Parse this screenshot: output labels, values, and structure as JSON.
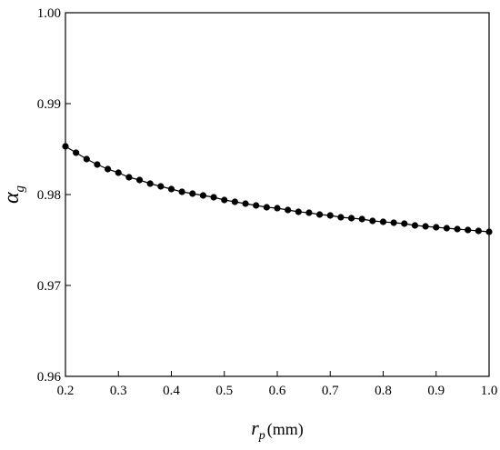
{
  "chart_data": {
    "type": "line",
    "title": "",
    "xlabel": {
      "symbol": "r",
      "subscript": "p",
      "unit": "(mm)"
    },
    "ylabel": {
      "symbol": "α",
      "subscript": "g"
    },
    "xlim": [
      0.2,
      1.0
    ],
    "ylim": [
      0.96,
      1.0
    ],
    "xticks": [
      "0.2",
      "0.3",
      "0.4",
      "0.5",
      "0.6",
      "0.7",
      "0.8",
      "0.9",
      "1.0"
    ],
    "yticks": [
      "0.96",
      "0.97",
      "0.98",
      "0.99",
      "1.00"
    ],
    "grid": false,
    "marker": "filled-circle",
    "series": [
      {
        "x": [
          0.2,
          0.22,
          0.24,
          0.26,
          0.28,
          0.3,
          0.32,
          0.34,
          0.36,
          0.38,
          0.4,
          0.42,
          0.44,
          0.46,
          0.48,
          0.5,
          0.52,
          0.54,
          0.56,
          0.58,
          0.6,
          0.62,
          0.64,
          0.66,
          0.68,
          0.7,
          0.72,
          0.74,
          0.76,
          0.78,
          0.8,
          0.82,
          0.84,
          0.86,
          0.88,
          0.9,
          0.92,
          0.94,
          0.96,
          0.98,
          1.0
        ],
        "y": [
          0.9853,
          0.9846,
          0.9839,
          0.9833,
          0.9828,
          0.9824,
          0.9819,
          0.9816,
          0.9812,
          0.9809,
          0.9806,
          0.9803,
          0.9801,
          0.9799,
          0.9797,
          0.9794,
          0.9792,
          0.979,
          0.9788,
          0.9786,
          0.9785,
          0.9783,
          0.9781,
          0.978,
          0.9778,
          0.9777,
          0.9775,
          0.9774,
          0.9773,
          0.9771,
          0.977,
          0.9769,
          0.9768,
          0.9766,
          0.9765,
          0.9764,
          0.9763,
          0.9762,
          0.9761,
          0.976,
          0.9759
        ]
      }
    ]
  }
}
